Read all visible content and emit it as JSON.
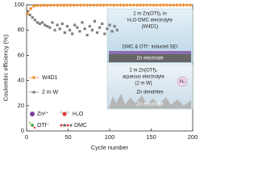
{
  "chart_data": {
    "type": "line",
    "xlabel": "Cycle number",
    "ylabel": "Coulombic efficiency (%)",
    "xlim": [
      0,
      200
    ],
    "xticks": [
      0,
      50,
      100,
      150,
      200
    ],
    "ylim": [
      0,
      100
    ],
    "yticks": [
      0,
      20,
      40,
      60,
      80,
      100
    ],
    "legend": "left",
    "series": [
      {
        "name": "W4D1",
        "color": "#f28c28",
        "marker": "diamond",
        "x": [
          1,
          5,
          9,
          13,
          17,
          21,
          25,
          29,
          33,
          37,
          41,
          45,
          49,
          53,
          57,
          61,
          65,
          69,
          73,
          77,
          81,
          85,
          89,
          93,
          97,
          101,
          105,
          109,
          113,
          117,
          121,
          125,
          129,
          133,
          137,
          141,
          145,
          149,
          153,
          157,
          161,
          165,
          169,
          173,
          177,
          181,
          185,
          189,
          193,
          197
        ],
        "values": [
          93,
          97,
          99,
          99.5,
          99.5,
          99.6,
          99.5,
          99.6,
          99.7,
          99.6,
          99.7,
          99.6,
          99.7,
          99.7,
          99.6,
          99.7,
          99.7,
          99.8,
          99.7,
          99.7,
          99.8,
          99.7,
          99.8,
          99.7,
          99.8,
          99.8,
          99.7,
          99.8,
          99.8,
          99.7,
          99.8,
          99.8,
          99.8,
          99.7,
          99.8,
          99.8,
          99.8,
          99.8,
          99.7,
          99.8,
          99.8,
          99.8,
          99.8,
          99.8,
          99.7,
          99.8,
          99.8,
          99.8,
          99.8,
          99.8
        ]
      },
      {
        "name": "2 m W",
        "color": "#7f7f7f",
        "marker": "square",
        "x": [
          1,
          4,
          7,
          10,
          13,
          16,
          19,
          22,
          25,
          28,
          31,
          34,
          37,
          40,
          43,
          46,
          49,
          52,
          55,
          58,
          61,
          64,
          67,
          70,
          73,
          76,
          79,
          82,
          85,
          88,
          91,
          94,
          97,
          100,
          103,
          106,
          109
        ],
        "values": [
          95,
          92,
          90,
          88,
          86,
          85,
          86,
          84,
          83,
          82,
          86,
          80,
          84,
          81,
          85,
          78,
          83,
          80,
          77,
          84,
          82,
          79,
          86,
          81,
          76,
          83,
          80,
          87,
          78,
          82,
          85,
          77,
          81,
          84,
          79,
          83,
          80
        ]
      }
    ],
    "annotations": [
      "2 m Zn(OTf)₂ in",
      "H₂O-DMC electrolyte",
      "(W4D1)",
      "DMC & OTf⁻ induced SEI",
      "Zn electrode",
      "2 m Zn(OTf)₂",
      "aqueous electrolyte",
      "(2 m W)",
      "H₂",
      "Zn dendrites",
      "Zn electrode",
      "Zn²⁺",
      "H₂O",
      "OTf⁻",
      "DMC"
    ]
  }
}
